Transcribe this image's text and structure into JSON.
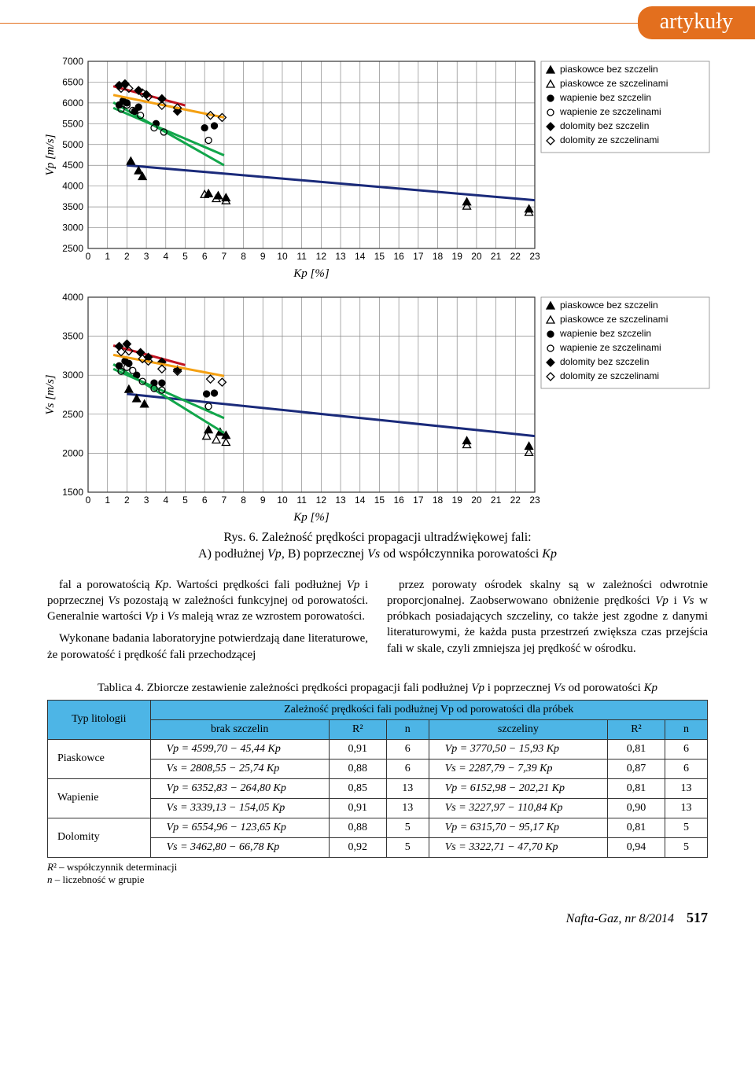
{
  "header": {
    "tab": "artykuły"
  },
  "chartA": {
    "title": "Vp [m/s]",
    "xlabel": "Kp [%]",
    "ylabel": "Vp [m/s]",
    "xmin": 0,
    "xmax": 23,
    "xstep": 1,
    "ymin": 2500,
    "ymax": 7000,
    "ystep": 500,
    "series": [
      {
        "name": "piaskowce bez szczelin",
        "marker": "tri-fill",
        "color": "#1a2a7a",
        "line": "none",
        "points": [
          [
            2.2,
            4600
          ],
          [
            2.6,
            4370
          ],
          [
            2.8,
            4230
          ],
          [
            6.2,
            3820
          ],
          [
            6.7,
            3770
          ],
          [
            7.1,
            3720
          ],
          [
            19.5,
            3620
          ],
          [
            22.7,
            3450
          ]
        ],
        "fit": [
          [
            2.0,
            4500
          ],
          [
            23,
            3660
          ]
        ]
      },
      {
        "name": "piaskowce ze szczelinami",
        "marker": "tri-open",
        "color": "#1a2a7a",
        "line": "none",
        "points": [
          [
            6.0,
            3800
          ],
          [
            6.6,
            3700
          ],
          [
            7.1,
            3650
          ],
          [
            19.5,
            3520
          ],
          [
            22.7,
            3370
          ]
        ],
        "fit": null
      },
      {
        "name": "wapienie bez szczelin",
        "marker": "circ-fill",
        "color": "#12a64b",
        "line": "none",
        "points": [
          [
            1.6,
            5950
          ],
          [
            1.8,
            6050
          ],
          [
            2.0,
            6000
          ],
          [
            2.4,
            5800
          ],
          [
            2.6,
            5900
          ],
          [
            3.5,
            5500
          ],
          [
            6.0,
            5400
          ],
          [
            6.5,
            5450
          ]
        ],
        "fit": [
          [
            1.3,
            6010
          ],
          [
            7.0,
            4500
          ]
        ]
      },
      {
        "name": "wapienie ze szczelinami",
        "marker": "circ-open",
        "color": "#12a64b",
        "line": "none",
        "points": [
          [
            1.7,
            5850
          ],
          [
            2.0,
            5950
          ],
          [
            2.3,
            5820
          ],
          [
            2.7,
            5700
          ],
          [
            3.4,
            5400
          ],
          [
            3.9,
            5300
          ],
          [
            6.2,
            5100
          ]
        ],
        "fit": [
          [
            1.3,
            5880
          ],
          [
            7.0,
            4740
          ]
        ]
      },
      {
        "name": "dolomity bez szczelin",
        "marker": "dia-fill",
        "color": "#c1121f",
        "line": "none",
        "points": [
          [
            1.6,
            6420
          ],
          [
            1.9,
            6460
          ],
          [
            2.6,
            6300
          ],
          [
            3.0,
            6200
          ],
          [
            3.8,
            6100
          ],
          [
            4.6,
            5800
          ]
        ],
        "fit": [
          [
            1.3,
            6400
          ],
          [
            5.0,
            5940
          ]
        ]
      },
      {
        "name": "dolomity ze szczelinami",
        "marker": "dia-open",
        "color": "#f4a012",
        "line": "none",
        "points": [
          [
            1.7,
            6350
          ],
          [
            2.1,
            6350
          ],
          [
            2.8,
            6240
          ],
          [
            3.1,
            6150
          ],
          [
            3.8,
            5940
          ],
          [
            4.6,
            5880
          ],
          [
            6.3,
            5700
          ],
          [
            6.9,
            5650
          ]
        ],
        "fit": [
          [
            1.3,
            6190
          ],
          [
            7.0,
            5650
          ]
        ]
      }
    ],
    "legend": [
      [
        "tri-fill",
        "piaskowce bez szczelin"
      ],
      [
        "tri-open",
        "piaskowce ze szczelinami"
      ],
      [
        "circ-fill",
        "wapienie bez szczelin"
      ],
      [
        "circ-open",
        "wapienie ze szczelinami"
      ],
      [
        "dia-fill",
        "dolomity bez szczelin"
      ],
      [
        "dia-open",
        "dolomity ze szczelinami"
      ]
    ]
  },
  "chartB": {
    "xlabel": "Kp [%]",
    "ylabel": "Vs [m/s]",
    "xmin": 0,
    "xmax": 23,
    "xstep": 1,
    "ymin": 1500,
    "ymax": 4000,
    "ystep": 500,
    "series": [
      {
        "name": "piaskowce bez szczelin",
        "marker": "tri-fill",
        "color": "#1a2a7a",
        "points": [
          [
            2.1,
            2820
          ],
          [
            2.5,
            2700
          ],
          [
            2.9,
            2630
          ],
          [
            6.2,
            2300
          ],
          [
            6.8,
            2270
          ],
          [
            7.1,
            2230
          ],
          [
            19.5,
            2160
          ],
          [
            22.7,
            2090
          ]
        ],
        "fit": [
          [
            2.0,
            2760
          ],
          [
            23,
            2220
          ]
        ]
      },
      {
        "name": "piaskowce ze szczelinami",
        "marker": "tri-open",
        "color": "#1a2a7a",
        "points": [
          [
            6.1,
            2220
          ],
          [
            6.6,
            2170
          ],
          [
            7.1,
            2140
          ],
          [
            19.5,
            2110
          ],
          [
            22.7,
            2010
          ]
        ],
        "fit": null
      },
      {
        "name": "wapienie bez szczelin",
        "marker": "circ-fill",
        "color": "#12a64b",
        "points": [
          [
            1.6,
            3120
          ],
          [
            1.9,
            3180
          ],
          [
            2.1,
            3150
          ],
          [
            2.5,
            3000
          ],
          [
            3.4,
            2900
          ],
          [
            3.8,
            2900
          ],
          [
            6.1,
            2760
          ],
          [
            6.5,
            2770
          ]
        ],
        "fit": [
          [
            1.3,
            3140
          ],
          [
            7.0,
            2260
          ]
        ]
      },
      {
        "name": "wapienie ze szczelinami",
        "marker": "circ-open",
        "color": "#12a64b",
        "points": [
          [
            1.7,
            3050
          ],
          [
            2.0,
            3100
          ],
          [
            2.3,
            3060
          ],
          [
            2.8,
            2920
          ],
          [
            3.4,
            2830
          ],
          [
            3.8,
            2810
          ],
          [
            6.2,
            2600
          ]
        ],
        "fit": [
          [
            1.3,
            3080
          ],
          [
            7.0,
            2450
          ]
        ]
      },
      {
        "name": "dolomity bez szczelin",
        "marker": "dia-fill",
        "color": "#c1121f",
        "points": [
          [
            1.6,
            3370
          ],
          [
            2.0,
            3400
          ],
          [
            2.7,
            3290
          ],
          [
            3.1,
            3230
          ],
          [
            3.8,
            3170
          ],
          [
            4.6,
            3070
          ]
        ],
        "fit": [
          [
            1.3,
            3380
          ],
          [
            5.0,
            3130
          ]
        ]
      },
      {
        "name": "dolomity ze szczelinami",
        "marker": "dia-open",
        "color": "#f4a012",
        "points": [
          [
            1.7,
            3300
          ],
          [
            2.1,
            3310
          ],
          [
            2.8,
            3210
          ],
          [
            3.1,
            3180
          ],
          [
            3.8,
            3080
          ],
          [
            4.6,
            3050
          ],
          [
            6.3,
            2950
          ],
          [
            6.9,
            2910
          ]
        ],
        "fit": [
          [
            1.3,
            3260
          ],
          [
            7.0,
            2990
          ]
        ]
      }
    ],
    "legend": [
      [
        "tri-fill",
        "piaskowce bez szczelin"
      ],
      [
        "tri-open",
        "piaskowce ze szczelinami"
      ],
      [
        "circ-fill",
        "wapienie bez szczelin"
      ],
      [
        "circ-open",
        "wapienie ze szczelinami"
      ],
      [
        "dia-fill",
        "dolomity bez szczelin"
      ],
      [
        "dia-open",
        "dolomity ze szczelinami"
      ]
    ]
  },
  "caption": {
    "line1": "Rys. 6. Zależność prędkości propagacji ultradźwiękowej fali:",
    "line2": "A) podłużnej Vp, B) poprzecznej Vs od współczynnika porowatości Kp"
  },
  "bodyL_p1": "fal a porowatością Kp. Wartości prędkości fali podłużnej Vp i poprzecznej Vs pozostają w zależności funkcyjnej od poro­watości. Generalnie wartości Vp i Vs maleją wraz ze wzro­stem porowatości.",
  "bodyL_p2": "Wykonane badania laboratoryjne potwierdzają dane literaturowe, że porowatość i prędkość fali przechodzącej",
  "bodyR_p1": "przez porowaty ośrodek skalny są w zależności odwrot­nie proporcjonalnej. Zaobserwowano obniżenie prędkości Vp i Vs w próbkach posiadających szczeliny, co także jest zgodne z danymi literaturowymi, że każda pusta przestrzeń zwiększa czas przejścia fali w skale, czyli zmniejsza jej prędkość w ośrodku.",
  "table": {
    "caption": "Tablica 4. Zbiorcze zestawienie zależności prędkości propagacji fali podłużnej Vp i poprzecznej Vs od porowatości Kp",
    "head1": "Typ litologii",
    "head2": "Zależność prędkości fali podłużnej Vp od porowatości dla próbek",
    "sub": [
      "brak szczelin",
      "R²",
      "n",
      "szczeliny",
      "R²",
      "n"
    ],
    "rows": [
      {
        "lit": "Piaskowce",
        "eqs": [
          [
            "Vp = 4599,70 − 45,44 Kp",
            "0,91",
            "6",
            "Vp = 3770,50 − 15,93 Kp",
            "0,81",
            "6"
          ],
          [
            "Vs = 2808,55 − 25,74 Kp",
            "0,88",
            "6",
            "Vs = 2287,79 − 7,39 Kp",
            "0,87",
            "6"
          ]
        ]
      },
      {
        "lit": "Wapienie",
        "eqs": [
          [
            "Vp = 6352,83 − 264,80 Kp",
            "0,85",
            "13",
            "Vp = 6152,98 − 202,21 Kp",
            "0,81",
            "13"
          ],
          [
            "Vs = 3339,13 − 154,05 Kp",
            "0,91",
            "13",
            "Vs = 3227,97 − 110,84 Kp",
            "0,90",
            "13"
          ]
        ]
      },
      {
        "lit": "Dolomity",
        "eqs": [
          [
            "Vp = 6554,96 − 123,65 Kp",
            "0,88",
            "5",
            "Vp = 6315,70 − 95,17 Kp",
            "0,81",
            "5"
          ],
          [
            "Vs = 3462,80 − 66,78 Kp",
            "0,92",
            "5",
            "Vs = 3322,71 − 47,70 Kp",
            "0,94",
            "5"
          ]
        ]
      }
    ],
    "note1": "R² – współczynnik determinacji",
    "note2": "n – liczebność w grupie"
  },
  "footer": {
    "issue": "Nafta-Gaz, nr 8/2014",
    "page": "517"
  }
}
